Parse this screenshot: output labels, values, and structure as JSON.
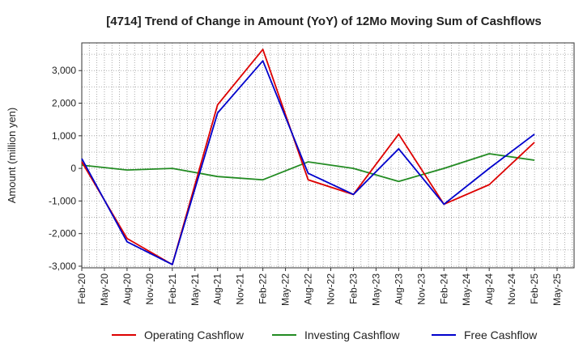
{
  "chart_data": {
    "type": "line",
    "title": "[4714]  Trend of Change in Amount (YoY) of 12Mo Moving Sum of Cashflows",
    "xlabel": "",
    "ylabel": "Amount (million yen)",
    "ylim": [
      -3050,
      3850
    ],
    "yticks": [
      3000,
      2000,
      1000,
      0,
      -1000,
      -2000,
      -3000
    ],
    "ytick_labels": [
      "3,000",
      "2,000",
      "1,000",
      "0",
      "-1,000",
      "-2,000",
      "-3,000"
    ],
    "categories": [
      "Feb-20",
      "May-20",
      "Aug-20",
      "Nov-20",
      "Feb-21",
      "May-21",
      "Aug-21",
      "Nov-21",
      "Feb-22",
      "May-22",
      "Aug-22",
      "Nov-22",
      "Feb-23",
      "May-23",
      "Aug-23",
      "Nov-23",
      "Feb-24",
      "May-24",
      "Aug-24",
      "Nov-24",
      "Feb-25",
      "May-25"
    ],
    "series": [
      {
        "name": "Operating Cashflow",
        "color": "#dd0000",
        "x": [
          "Feb-20",
          "Aug-20",
          "Feb-21",
          "Aug-21",
          "Feb-22",
          "Aug-22",
          "Feb-23",
          "Aug-23",
          "Feb-24",
          "Aug-24",
          "Feb-25"
        ],
        "values": [
          200,
          -2150,
          -2950,
          1950,
          3650,
          -350,
          -800,
          1050,
          -1100,
          -500,
          800
        ]
      },
      {
        "name": "Investing Cashflow",
        "color": "#228B22",
        "x": [
          "Feb-20",
          "Aug-20",
          "Feb-21",
          "Aug-21",
          "Feb-22",
          "Aug-22",
          "Feb-23",
          "Aug-23",
          "Feb-24",
          "Aug-24",
          "Feb-25"
        ],
        "values": [
          100,
          -50,
          0,
          -250,
          -350,
          200,
          0,
          -400,
          0,
          450,
          250
        ]
      },
      {
        "name": "Free Cashflow",
        "color": "#0000cc",
        "x": [
          "Feb-20",
          "Aug-20",
          "Feb-21",
          "Aug-21",
          "Feb-22",
          "Aug-22",
          "Feb-23",
          "Aug-23",
          "Feb-24",
          "Aug-24",
          "Feb-25"
        ],
        "values": [
          300,
          -2250,
          -2950,
          1700,
          3300,
          -150,
          -800,
          600,
          -1100,
          0,
          1050
        ]
      }
    ],
    "legend_position": "bottom",
    "grid": true
  }
}
